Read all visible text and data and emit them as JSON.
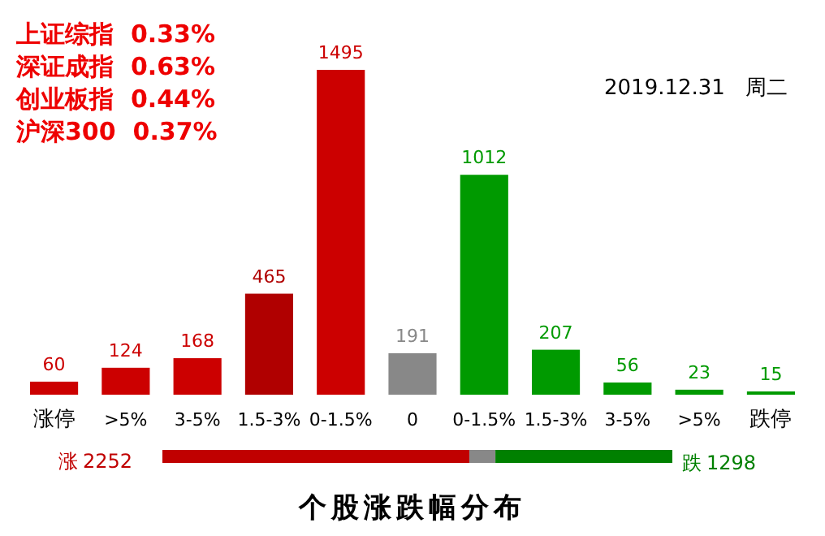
{
  "chart_data": [
    {
      "type": "bar",
      "title": "个股涨跌幅分布",
      "categories": [
        "涨停",
        ">5%",
        "3-5%",
        "1.5-3%",
        "0-1.5%",
        "0",
        "0-1.5%",
        "1.5-3%",
        "3-5%",
        ">5%",
        "跌停"
      ],
      "values": [
        60,
        124,
        168,
        465,
        1495,
        191,
        1012,
        207,
        56,
        23,
        15
      ],
      "colors": [
        "#cc0000",
        "#cc0000",
        "#cc0000",
        "#b00000",
        "#cc0000",
        "#888888",
        "#009a00",
        "#009a00",
        "#009a00",
        "#009a00",
        "#009a00"
      ],
      "data_labels": true,
      "annotations": [
        "上证综指  0.33%",
        "深证成指  0.63%",
        "创业板指  0.44%",
        "沪深300  0.37%",
        "2019.12.31   周二"
      ]
    },
    {
      "type": "bar",
      "orientation": "horizontal",
      "stacked": true,
      "categories": [
        null
      ],
      "series": [
        {
          "name": "涨",
          "color": "#c00000",
          "values": [
            2252
          ],
          "value_labels": [
            "2252"
          ]
        },
        {
          "color": "#888888",
          "values": [
            191
          ],
          "value_labels": [
            null
          ]
        },
        {
          "name": "跌",
          "color": "#008000",
          "values": [
            1298
          ],
          "value_labels": [
            "1298"
          ]
        }
      ]
    }
  ]
}
